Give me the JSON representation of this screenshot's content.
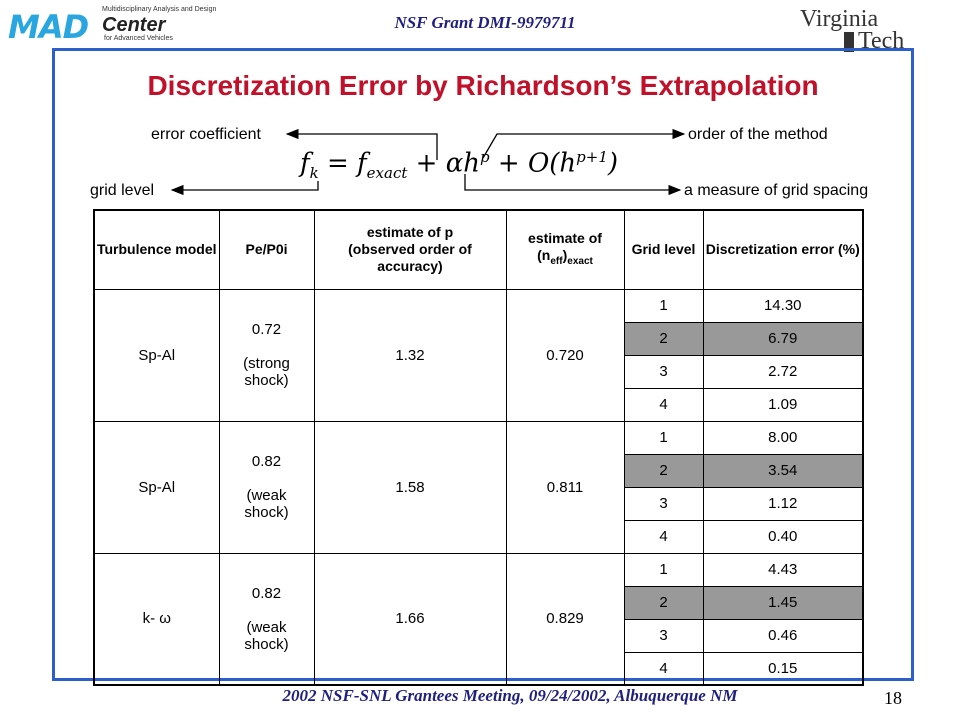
{
  "header": {
    "mad_letters": "MAD",
    "mad_small": "Multidisciplinary Analysis and Design",
    "mad_center": "Center",
    "mad_sub": "for Advanced Vehicles",
    "grant": "NSF Grant DMI-9979711",
    "vt_virginia": "Virginia",
    "vt_tech": "Tech"
  },
  "title": "Discretization Error by Richardson’s Extrapolation",
  "annotations": {
    "error_coefficient": "error coefficient",
    "order_of_method": "order of the method",
    "grid_level": "grid level",
    "grid_spacing": "a measure of grid spacing"
  },
  "table": {
    "headers": {
      "turbulence": "Turbulence model",
      "pe": "Pe/P0i",
      "p_line1": "estimate of p",
      "p_line2": "(observed order of accuracy)",
      "n_line1": "estimate of",
      "n_open": "(n",
      "n_sub1": "eff",
      "n_close": ")",
      "n_sub2": "exact",
      "grid": "Grid level",
      "disc": "Discretization error (%)"
    },
    "groups": [
      {
        "model": "Sp-Al",
        "pe_value": "0.72",
        "pe_note": "(strong shock)",
        "p": "1.32",
        "n": "0.720",
        "rows": [
          {
            "grid": "1",
            "error": "14.30"
          },
          {
            "grid": "2",
            "error": "6.79"
          },
          {
            "grid": "3",
            "error": "2.72"
          },
          {
            "grid": "4",
            "error": "1.09"
          }
        ]
      },
      {
        "model": "Sp-Al",
        "pe_value": "0.82",
        "pe_note": "(weak shock)",
        "p": "1.58",
        "n": "0.811",
        "rows": [
          {
            "grid": "1",
            "error": "8.00"
          },
          {
            "grid": "2",
            "error": "3.54"
          },
          {
            "grid": "3",
            "error": "1.12"
          },
          {
            "grid": "4",
            "error": "0.40"
          }
        ]
      },
      {
        "model": "k- ω",
        "pe_value": "0.82",
        "pe_note": "(weak shock)",
        "p": "1.66",
        "n": "0.829",
        "rows": [
          {
            "grid": "1",
            "error": "4.43"
          },
          {
            "grid": "2",
            "error": "1.45"
          },
          {
            "grid": "3",
            "error": "0.46"
          },
          {
            "grid": "4",
            "error": "0.15"
          }
        ]
      }
    ]
  },
  "footer": "2002 NSF-SNL Grantees Meeting, 09/24/2002, Albuquerque NM",
  "page_number": "18",
  "colors": {
    "title": "#c0102a",
    "frame": "#2d5fc9",
    "header_text": "#1f1f80",
    "logo_blue": "#29a6e0",
    "shaded_row": "#999999"
  }
}
